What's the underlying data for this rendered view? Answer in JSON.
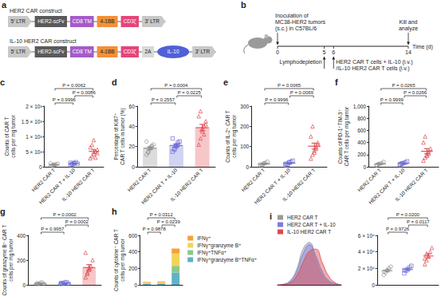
{
  "panel_a": {
    "panel": "a",
    "constructs": [
      {
        "title": "HER2 CAR construct",
        "elements": [
          {
            "label": "5′ LTR",
            "color": "#c8c8c8",
            "shape": "ltr"
          },
          {
            "label": "HER2-scFv",
            "color": "#5a5a5a",
            "shape": "box"
          },
          {
            "label": "CD8 TM",
            "color": "#a55bc8",
            "shape": "box"
          },
          {
            "label": "4-1BB",
            "color": "#f2903a",
            "shape": "box"
          },
          {
            "label": "CD3ζ",
            "color": "#e5457a",
            "shape": "box"
          },
          {
            "label": "3′ LTR",
            "color": "#c8c8c8",
            "shape": "ltr"
          }
        ]
      },
      {
        "title": "IL-10 HER2 CAR construct",
        "elements": [
          {
            "label": "5′ LTR",
            "color": "#c8c8c8",
            "shape": "ltr"
          },
          {
            "label": "HER2-scFv",
            "color": "#5a5a5a",
            "shape": "box"
          },
          {
            "label": "CD8 TM",
            "color": "#a55bc8",
            "shape": "box"
          },
          {
            "label": "4-1BB",
            "color": "#f2903a",
            "shape": "box"
          },
          {
            "label": "CD3ζ",
            "color": "#e5457a",
            "shape": "box"
          },
          {
            "label": "2A",
            "color": "#d9d9d9",
            "shape": "box"
          },
          {
            "label": "IL-10",
            "color": "#5060d8",
            "shape": "ellipse"
          },
          {
            "label": "3′ LTR",
            "color": "#c8c8c8",
            "shape": "ltr"
          }
        ]
      }
    ]
  },
  "panel_b": {
    "panel": "b",
    "xlim": [
      0,
      14
    ],
    "ticks": [
      0,
      5,
      6,
      14
    ],
    "axis_label": "Time (d)",
    "above": [
      {
        "day": 0,
        "lines": [
          "Inoculation of",
          "MC38-HER2 tumors",
          "(s.c.) in C57BL/6"
        ]
      },
      {
        "day": 14,
        "lines": [
          "Kill and",
          "analyze"
        ]
      }
    ],
    "below": [
      {
        "day": 5,
        "lines": [
          "Lymphodepletion"
        ]
      },
      {
        "day": 6,
        "lines": [
          "HER2 CAR T cells + IL-10 (i.v.)",
          "/IL-10 HER2 CAR T cells (i.v.)"
        ]
      }
    ]
  },
  "chart_data": [
    {
      "panel": "c",
      "type": "scatter",
      "categories": [
        "HER2 CAR T",
        "HER2 CAR T + IL-10",
        "IL-10 HER2 CAR T"
      ],
      "ylabel": "Counts of CAR T\ncells per mg tumor",
      "ylim": [
        0,
        2000
      ],
      "yticks": [
        0,
        {
          "value": 500,
          "label": "5 × 10²"
        },
        {
          "value": 1000,
          "label": "1 × 10³"
        },
        {
          "value": 1500,
          "label": "1.5 × 10³"
        },
        {
          "value": 2000,
          "label": "2 × 10³"
        }
      ],
      "colors": [
        "#8c8c8c",
        "#6b6bd6",
        "#e0474c"
      ],
      "points": [
        [
          30,
          45,
          60,
          80,
          95,
          110,
          40,
          70
        ],
        [
          60,
          90,
          120,
          150,
          100,
          130,
          80,
          110
        ],
        [
          280,
          350,
          420,
          500,
          560,
          640,
          720,
          880,
          300,
          450
        ]
      ],
      "values": [
        66,
        105,
        510
      ],
      "errors": [
        10,
        11,
        62
      ],
      "comparisons": [
        {
          "groups": [
            0,
            1
          ],
          "label": "P = 0.9996"
        },
        {
          "groups": [
            1,
            2
          ],
          "label": "P = 0.0086"
        },
        {
          "groups": [
            0,
            2
          ],
          "label": "P = 0.0062"
        }
      ],
      "grid": false
    },
    {
      "panel": "d",
      "type": "bar",
      "categories": [
        "HER2 CAR T",
        "HER2 CAR T + IL-10",
        "IL-10 HER2 CAR T"
      ],
      "ylabel": "Percentage of Ki67⁺\nCAR T cells in tumor (%)",
      "ylim": [
        0,
        60
      ],
      "yticks": [
        0,
        20,
        40,
        60
      ],
      "colors": [
        "#8c8c8c",
        "#6b6bd6",
        "#e0474c"
      ],
      "points": [
        [
          12,
          15,
          18,
          20,
          22,
          25,
          14,
          19,
          21
        ],
        [
          15,
          18,
          20,
          22,
          25,
          28,
          17,
          21,
          24
        ],
        [
          22,
          28,
          35,
          40,
          45,
          50,
          55,
          38,
          32,
          42
        ]
      ],
      "values": [
        18.4,
        21.1,
        38.7
      ],
      "errors": [
        1.4,
        1.4,
        3.2
      ],
      "comparisons": [
        {
          "groups": [
            0,
            1
          ],
          "label": "P = 0.2557"
        },
        {
          "groups": [
            1,
            2
          ],
          "label": "P = 0.0225"
        },
        {
          "groups": [
            0,
            2
          ],
          "label": "P = 0.0004"
        }
      ],
      "grid": false
    },
    {
      "panel": "e",
      "type": "scatter",
      "categories": [
        "HER2 CAR T",
        "HER2 CAR T + IL-10",
        "IL-10 HER2 CAR T"
      ],
      "ylabel": "Counts of IL-2⁺ CAR T\ncells per mg tumor",
      "ylim": [
        0,
        300
      ],
      "yticks": [
        0,
        100,
        200,
        300
      ],
      "colors": [
        "#8c8c8c",
        "#6b6bd6",
        "#e0474c"
      ],
      "points": [
        [
          5,
          10,
          15,
          20,
          25,
          12,
          8,
          18
        ],
        [
          8,
          12,
          20,
          25,
          30,
          15,
          10,
          22
        ],
        [
          40,
          60,
          80,
          100,
          120,
          150,
          200,
          70,
          90,
          110
        ]
      ],
      "values": [
        14.1,
        17.8,
        102
      ],
      "errors": [
        2.4,
        2.7,
        15
      ],
      "comparisons": [
        {
          "groups": [
            0,
            1
          ],
          "label": "P = 0.9996"
        },
        {
          "groups": [
            1,
            2
          ],
          "label": "P = 0.0069"
        },
        {
          "groups": [
            0,
            2
          ],
          "label": "P = 0.0065"
        }
      ],
      "grid": false
    },
    {
      "panel": "f",
      "type": "scatter",
      "categories": [
        "HER2 CAR T",
        "HER2 CAR T + IL-10",
        "IL-10 HER2 CAR T"
      ],
      "ylabel": "Counts of PD-1⁺TIM-3⁺\nCAR T cells per mg tumor",
      "ylim": [
        0,
        1000
      ],
      "yticks": [
        0,
        200,
        400,
        600,
        800,
        {
          "value": 1000,
          "label": "1,000"
        }
      ],
      "colors": [
        "#8c8c8c",
        "#6b6bd6",
        "#e0474c"
      ],
      "points": [
        [
          20,
          40,
          50,
          60,
          80,
          30,
          45
        ],
        [
          30,
          50,
          60,
          70,
          90,
          40,
          55
        ],
        [
          100,
          150,
          200,
          250,
          300,
          400,
          500,
          180,
          220
        ]
      ],
      "values": [
        46.4,
        56.4,
        255.6
      ],
      "errors": [
        7,
        7,
        42
      ],
      "comparisons": [
        {
          "groups": [
            0,
            1
          ],
          "label": "P = 0.9999"
        },
        {
          "groups": [
            1,
            2
          ],
          "label": "P = 0.0266"
        },
        {
          "groups": [
            0,
            2
          ],
          "label": "P = 0.0265"
        }
      ],
      "grid": false
    },
    {
      "panel": "g",
      "type": "bar",
      "categories": [
        null,
        null,
        null
      ],
      "ylabel": "Counts of granzyme B⁺ CAR T\ncells per mg tumor",
      "ylim": [
        0,
        400
      ],
      "yticks": [
        0,
        200,
        400
      ],
      "colors": [
        "#8c8c8c",
        "#6b6bd6",
        "#e0474c"
      ],
      "points": [
        [
          5,
          10,
          15,
          20,
          8,
          12
        ],
        [
          8,
          12,
          18,
          22,
          10,
          15
        ],
        [
          60,
          90,
          120,
          150,
          200,
          260,
          100,
          140
        ]
      ],
      "values": [
        11.7,
        14.2,
        140
      ],
      "errors": [
        2.2,
        2.1,
        23
      ],
      "comparisons": [
        {
          "groups": [
            0,
            1
          ],
          "label": "P = 0.9957"
        },
        {
          "groups": [
            1,
            2
          ],
          "label": "P = 0.0002"
        },
        {
          "groups": [
            0,
            2
          ],
          "label": "P = 0.0002"
        }
      ],
      "grid": false
    },
    {
      "panel": "h",
      "type": "bar",
      "stacked": true,
      "categories": [
        null,
        null,
        null
      ],
      "ylabel": "Counts of cytokine⁺ CAR T\ncells per mg tumor",
      "ylim": [
        0,
        600
      ],
      "yticks": [
        0,
        200,
        400,
        600
      ],
      "series": [
        {
          "name": "IFNγ⁺",
          "color": "#f5a03a",
          "values": [
            8,
            10,
            60
          ]
        },
        {
          "name": "IFNγ⁺granzyme B⁺",
          "color": "#f3d35a",
          "values": [
            10,
            12,
            150
          ]
        },
        {
          "name": "IFNγ⁺TNFα⁺",
          "color": "#8cc887",
          "values": [
            5,
            6,
            80
          ]
        },
        {
          "name": "IFNγ⁺granzyme B⁺TNFα⁺",
          "color": "#5fb3c7",
          "values": [
            12,
            14,
            150
          ]
        }
      ],
      "legend": "right",
      "comparisons": [
        {
          "groups": [
            0,
            1
          ],
          "label": "P = 0.9878"
        },
        {
          "groups": [
            1,
            2
          ],
          "label": "P = 0.0239"
        },
        {
          "groups": [
            0,
            2
          ],
          "label": "P = 0.0312"
        }
      ],
      "grid": false
    },
    {
      "panel": "i",
      "type": "line",
      "x": [
        0,
        1,
        2,
        3,
        4,
        5,
        6,
        7,
        8,
        9,
        10
      ],
      "xlim": [
        0,
        10
      ],
      "ylim": [
        0,
        100
      ],
      "series": [
        {
          "name": "HER2 CAR T",
          "color": "#9a9a9a",
          "values": [
            0,
            2,
            10,
            35,
            80,
            95,
            60,
            25,
            8,
            2,
            0
          ]
        },
        {
          "name": "HER2 CAR T + IL-10",
          "color": "#7b7be0",
          "values": [
            0,
            1,
            8,
            30,
            70,
            90,
            65,
            30,
            10,
            3,
            0
          ]
        },
        {
          "name": "IL-10 HER2 CAR T",
          "color": "#e0474c",
          "values": [
            0,
            1,
            5,
            20,
            50,
            75,
            80,
            50,
            20,
            5,
            0
          ]
        }
      ],
      "legend": "top-left",
      "tick_labels": false,
      "grid": false
    },
    {
      "type": "scatter",
      "categories": [
        null,
        null,
        null
      ],
      "ylim": [
        0,
        60000
      ],
      "yticks": [
        0,
        {
          "value": 20000,
          "label": "2 × 10⁴"
        },
        {
          "value": 40000,
          "label": "4 × 10⁴"
        },
        {
          "value": 60000,
          "label": "6 × 10⁴"
        }
      ],
      "colors": [
        "#8c8c8c",
        "#6b6bd6",
        "#e0474c"
      ],
      "points": [
        [
          12000,
          15000,
          18000,
          20000,
          22000,
          16000
        ],
        [
          14000,
          17000,
          19000,
          21000,
          23000,
          18000
        ],
        [
          25000,
          30000,
          35000,
          40000,
          45000,
          32000,
          38000
        ]
      ],
      "values": [
        17167,
        18667,
        35000
      ],
      "errors": [
        1500,
        1400,
        2600
      ],
      "comparisons": [
        {
          "groups": [
            0,
            1
          ],
          "label": "P = 0.9726"
        },
        {
          "groups": [
            1,
            2
          ],
          "label": "P = 0.0117"
        },
        {
          "groups": [
            0,
            2
          ],
          "label": "P = 0.0200"
        }
      ],
      "grid": false
    }
  ]
}
